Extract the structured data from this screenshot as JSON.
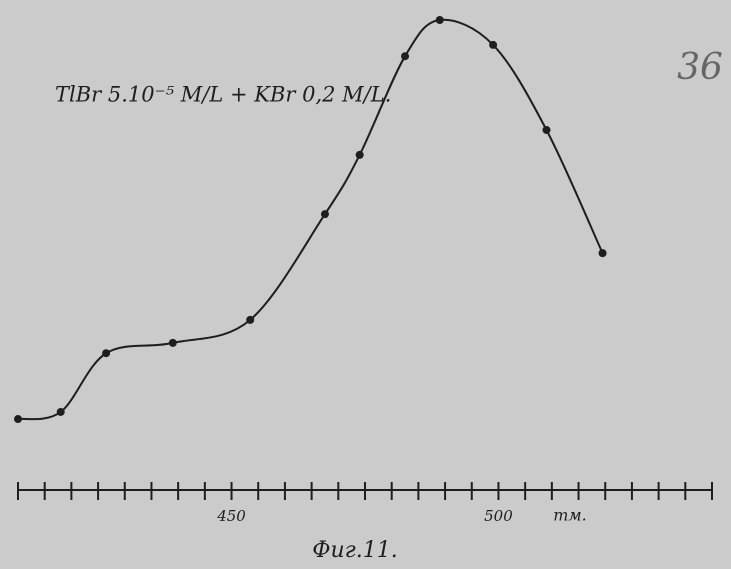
{
  "chart_data": {
    "type": "line",
    "title": "TlBr 5.10⁻⁵ M/L + KBr 0,2 M/L.",
    "page_number": "36",
    "caption": "Фиг.11.",
    "xlabel": "тм.",
    "x": [
      410,
      418,
      426.5,
      439,
      453.5,
      467.5,
      474,
      482.5,
      489,
      499,
      509,
      519.5
    ],
    "series": [
      {
        "color": "#1e1e1e",
        "values": [
          15.1,
          16.6,
          29.1,
          31.3,
          36.2,
          58.7,
          71.3,
          92.3,
          100,
          94.7,
          76.6,
          50.4
        ]
      }
    ],
    "xlim": [
      410,
      540
    ],
    "ylim": [
      0,
      100
    ],
    "xticks": [
      450,
      500
    ],
    "xminor": [
      410,
      415,
      420,
      425,
      430,
      435,
      440,
      445,
      455,
      460,
      465,
      470,
      475,
      480,
      485,
      490,
      495,
      505,
      510,
      515,
      520,
      525,
      530,
      535,
      540
    ]
  }
}
